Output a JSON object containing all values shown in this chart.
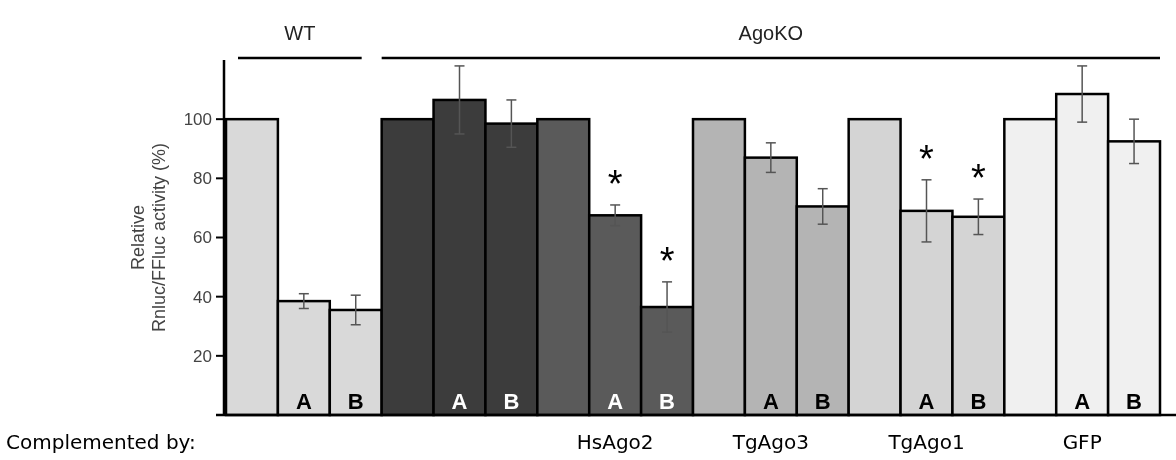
{
  "chart_data": {
    "type": "bar",
    "ylabel": "Relative Rnluc/FFluc activity (%)",
    "categories": [
      null,
      "A",
      "B",
      null,
      "A",
      "B",
      null,
      "A",
      "B",
      null,
      "A",
      "B",
      null,
      "A",
      "B",
      null,
      "A",
      "B"
    ],
    "values": [
      100,
      38.5,
      35.5,
      100,
      106.5,
      98.5,
      100,
      67.5,
      36.5,
      100,
      87,
      70.5,
      100,
      69,
      67,
      100,
      108.5,
      92.5
    ],
    "errors": [
      null,
      2.5,
      5,
      null,
      11.5,
      8,
      null,
      3.5,
      8.5,
      null,
      5,
      6,
      null,
      10.5,
      6,
      null,
      9.5,
      7.5
    ],
    "colors": [
      "#d9d9d9",
      "#d9d9d9",
      "#d9d9d9",
      "#3c3c3c",
      "#3c3c3c",
      "#3c3c3c",
      "#5a5a5a",
      "#5a5a5a",
      "#5a5a5a",
      "#b4b4b4",
      "#b4b4b4",
      "#b4b4b4",
      "#d4d4d4",
      "#d4d4d4",
      "#d4d4d4",
      "#f0f0f0",
      "#f0f0f0",
      "#f0f0f0"
    ],
    "ylim": [
      0,
      120
    ],
    "yticks": [
      20,
      40,
      60,
      80,
      100
    ],
    "grid": false,
    "annotations": [
      "WT",
      "AgoKO",
      "Complemented by:",
      "HsAgo2",
      "TgAgo3",
      "TgAgo1",
      "GFP",
      "*",
      "*",
      "*",
      "*"
    ]
  }
}
